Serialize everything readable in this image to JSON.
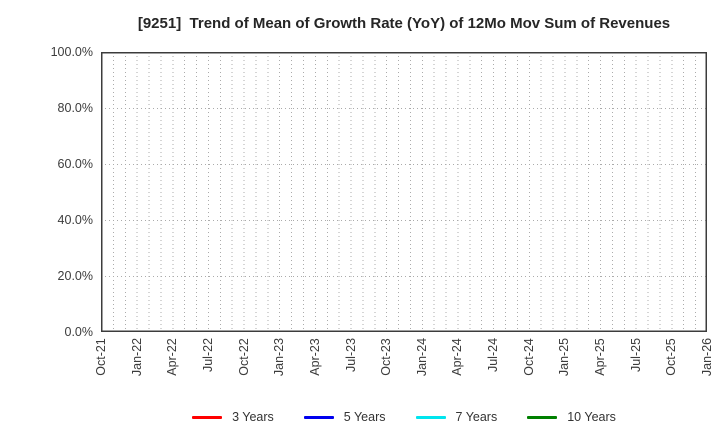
{
  "chart_data": {
    "type": "line",
    "title": "[9251]  Trend of Mean of Growth Rate (YoY) of 12Mo Mov Sum of Revenues",
    "xlabel": "",
    "ylabel": "",
    "ylim": [
      0,
      100
    ],
    "y_tick_format": "percent",
    "y_ticks": [
      {
        "value": 0,
        "label": "0.0%"
      },
      {
        "value": 20,
        "label": "20.0%"
      },
      {
        "value": 40,
        "label": "40.0%"
      },
      {
        "value": 60,
        "label": "60.0%"
      },
      {
        "value": 80,
        "label": "80.0%"
      },
      {
        "value": 100,
        "label": "100.0%"
      }
    ],
    "x_total_months": 51,
    "x_ticks": [
      {
        "month_index": 0,
        "label": "Oct-21"
      },
      {
        "month_index": 3,
        "label": "Jan-22"
      },
      {
        "month_index": 6,
        "label": "Apr-22"
      },
      {
        "month_index": 9,
        "label": "Jul-22"
      },
      {
        "month_index": 12,
        "label": "Oct-22"
      },
      {
        "month_index": 15,
        "label": "Jan-23"
      },
      {
        "month_index": 18,
        "label": "Apr-23"
      },
      {
        "month_index": 21,
        "label": "Jul-23"
      },
      {
        "month_index": 24,
        "label": "Oct-23"
      },
      {
        "month_index": 27,
        "label": "Jan-24"
      },
      {
        "month_index": 30,
        "label": "Apr-24"
      },
      {
        "month_index": 33,
        "label": "Jul-24"
      },
      {
        "month_index": 36,
        "label": "Oct-24"
      },
      {
        "month_index": 39,
        "label": "Jan-25"
      },
      {
        "month_index": 42,
        "label": "Apr-25"
      },
      {
        "month_index": 45,
        "label": "Jul-25"
      },
      {
        "month_index": 48,
        "label": "Oct-25"
      },
      {
        "month_index": 51,
        "label": "Jan-26"
      }
    ],
    "grid": {
      "on": true,
      "vertical": "every month, dotted",
      "horizontal": "every 20%, dotted"
    },
    "legend_position": "bottom-center",
    "series": [
      {
        "name": "3 Years",
        "color": "#ff0000",
        "points": []
      },
      {
        "name": "5 Years",
        "color": "#0000ee",
        "points": []
      },
      {
        "name": "7 Years",
        "color": "#00e5ee",
        "points": []
      },
      {
        "name": "10 Years",
        "color": "#008000",
        "points": []
      }
    ],
    "palette": {
      "background": "#ffffff",
      "grid_line": "#ababab",
      "axis_border": "#3c3c3c",
      "title_text": "#262626",
      "tick_text": "#3c3c3c",
      "legend_text": "#333333"
    }
  }
}
